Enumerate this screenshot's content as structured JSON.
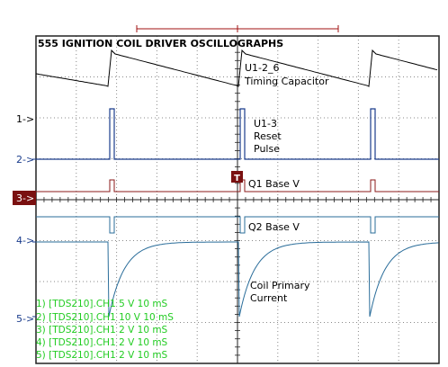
{
  "title": "555 IGNITION COIL DRIVER OSCILLOGRAPHS",
  "trigger_marker": "T",
  "channel_markers": [
    "1->",
    "2->",
    "3->",
    "4->",
    "5->"
  ],
  "colors": {
    "grid": "#8a8a8a",
    "black_trace": "#000000",
    "blue_trace": "#1a3c8c",
    "teal_trace": "#2a6d9a",
    "red_trace": "#8b1a1a",
    "marker_red": "#7a1010",
    "marker_blue": "#1a3c8c",
    "legend_green": "#22cc22"
  },
  "chart_data": {
    "type": "line",
    "title": "555 IGNITION COIL DRIVER OSCILLOGRAPHS",
    "grid": true,
    "divisions": {
      "x": 10,
      "y": 8
    },
    "annotations": [
      "U1-2_6",
      "Timing Capacitor",
      "U1-3",
      "Reset",
      "Pulse",
      "Q1 Base V",
      "Q2 Base V",
      "Coil Primary",
      "Current"
    ],
    "legend": [
      "1) [TDS210].CH1  5  V   10 mS",
      "2) [TDS210].CH1  10  V   10 mS",
      "3) [TDS210].CH1  2  V   10 mS",
      "4) [TDS210].CH1  2  V   10 mS",
      "5) [TDS210].CH1  2  V   10 mS"
    ],
    "series": [
      {
        "key": "timing_capacitor",
        "color": "#000000"
      },
      {
        "key": "reset_pulse",
        "color": "#1a3c8c"
      },
      {
        "key": "q1_base",
        "color": "#8b1a1a"
      },
      {
        "key": "q2_base",
        "color": "#2a6d9a"
      },
      {
        "key": "coil_current",
        "color": "#2a6d9a"
      }
    ]
  }
}
